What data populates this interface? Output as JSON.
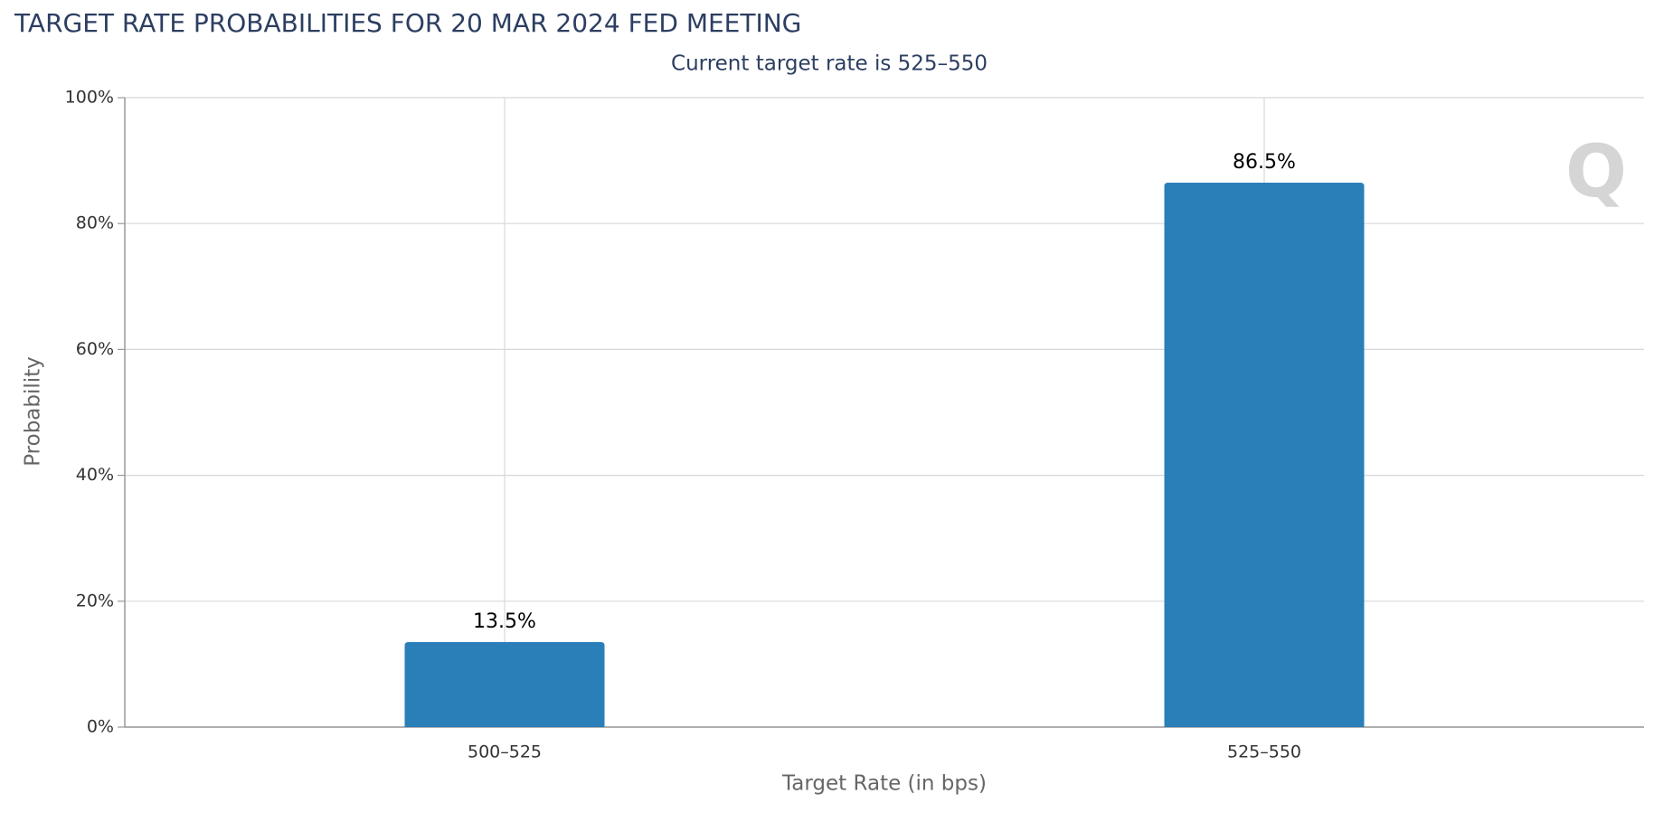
{
  "chart_data": {
    "type": "bar",
    "title": "TARGET RATE PROBABILITIES FOR 20 MAR 2024 FED MEETING",
    "subtitle": "Current target rate is 525–550",
    "x_label": "Target Rate (in bps)",
    "y_label": "Probability",
    "categories": [
      "500–525",
      "525–550"
    ],
    "values": [
      13.5,
      86.5
    ],
    "value_labels": [
      "13.5%",
      "86.5%"
    ],
    "color": "#2a7fb8",
    "ylim": [
      0,
      100
    ],
    "yticks": [
      {
        "value": 0,
        "label": "0%"
      },
      {
        "value": 20,
        "label": "20%"
      },
      {
        "value": 40,
        "label": "40%"
      },
      {
        "value": 60,
        "label": "60%"
      },
      {
        "value": 80,
        "label": "80%"
      },
      {
        "value": 100,
        "label": "100%"
      }
    ],
    "grid": true
  }
}
